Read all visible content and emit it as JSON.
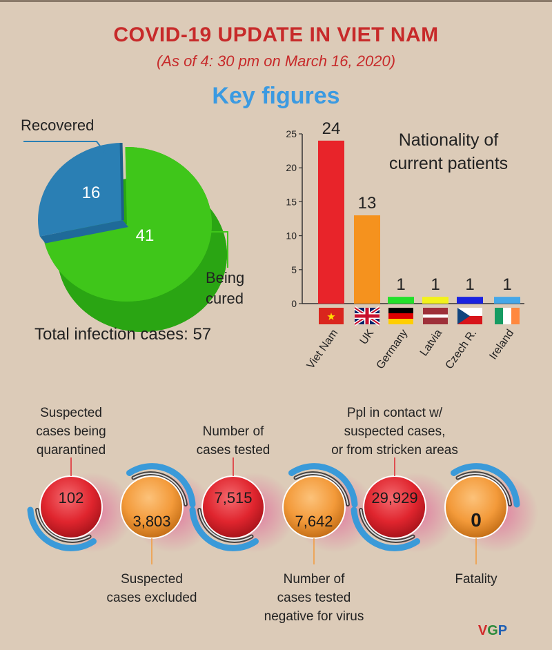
{
  "header": {
    "title": "COVID-19 UPDATE IN VIET NAM",
    "subtitle": "(As of 4: 30 pm on March 16, 2020)",
    "section": "Key figures"
  },
  "chart_data": [
    {
      "type": "pie",
      "slices": [
        {
          "name": "Being cured",
          "label_lines": [
            "Being",
            "cured"
          ],
          "value": 41,
          "color": "#3fc61a"
        },
        {
          "name": "Recovered",
          "label_lines": [
            "Recovered"
          ],
          "value": 16,
          "color": "#2a7fb4"
        }
      ],
      "total_label": "Total infection cases: 57"
    },
    {
      "type": "bar",
      "title_lines": [
        "Nationality of",
        "current patients"
      ],
      "categories": [
        "Viet Nam",
        "UK",
        "Germany",
        "Latvia",
        "Czech R.",
        "Ireland"
      ],
      "values": [
        24,
        13,
        1,
        1,
        1,
        1
      ],
      "colors": [
        "#e8242a",
        "#f5921e",
        "#22e02a",
        "#f3f21a",
        "#1a22e0",
        "#45a7e8"
      ],
      "yticks": [
        0,
        5,
        10,
        15,
        20,
        25
      ],
      "ylim": [
        0,
        25
      ]
    }
  ],
  "stats": [
    {
      "value": "102",
      "label_lines": [
        "Suspected",
        "cases being",
        "quarantined"
      ],
      "color": "red",
      "pos": "top"
    },
    {
      "value": "3,803",
      "label_lines": [
        "Suspected",
        "cases excluded"
      ],
      "color": "orange",
      "pos": "bottom"
    },
    {
      "value": "7,515",
      "label_lines": [
        "Number of",
        "cases tested"
      ],
      "color": "red",
      "pos": "top"
    },
    {
      "value": "7,642",
      "label_lines": [
        "Number of",
        "cases tested",
        "negative for virus"
      ],
      "color": "orange",
      "pos": "bottom"
    },
    {
      "value": "29,929",
      "label_lines": [
        "Ppl in contact w/",
        "suspected cases,",
        "or from stricken areas"
      ],
      "color": "red",
      "pos": "top"
    },
    {
      "value": "0",
      "label_lines": [
        "Fatality"
      ],
      "color": "orange",
      "pos": "bottom"
    }
  ],
  "logo": "VGP"
}
